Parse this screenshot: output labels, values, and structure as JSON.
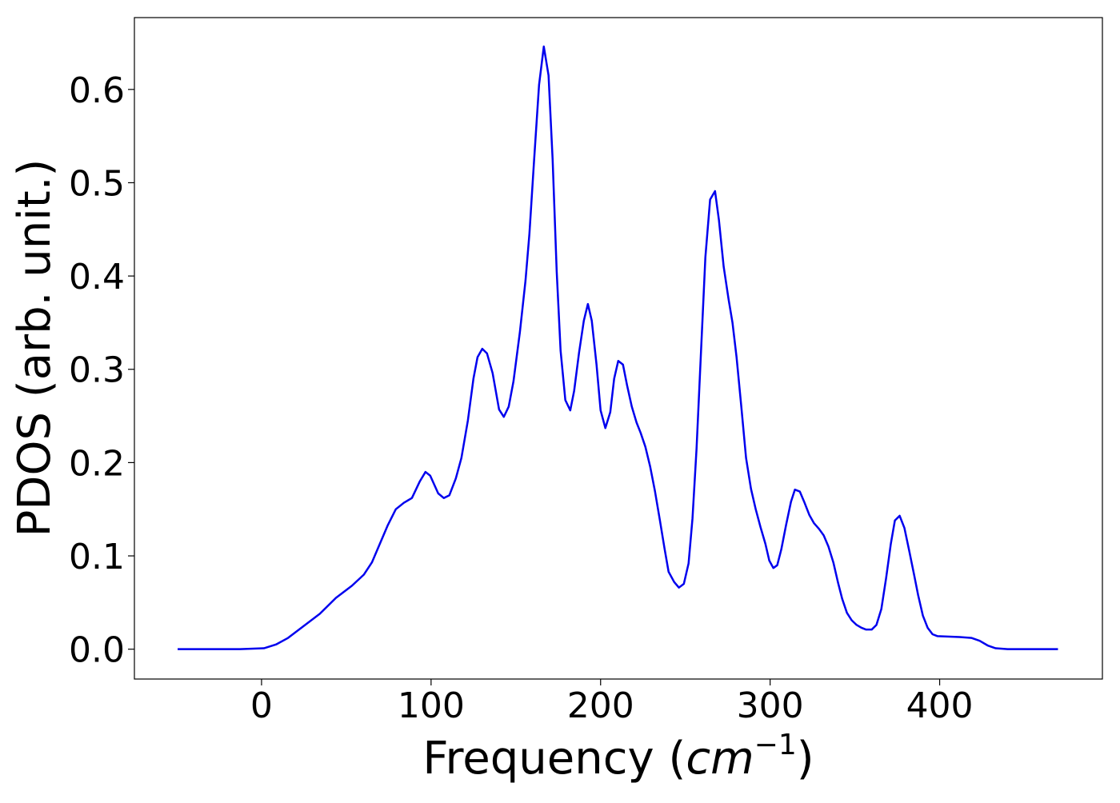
{
  "chart_data": {
    "type": "line",
    "xlabel": [
      "Frequency (",
      "cm",
      "−1",
      ")"
    ],
    "ylabel": "PDOS (arb. unit.)",
    "xlim": [
      -75,
      496
    ],
    "ylim": [
      -0.032,
      0.677
    ],
    "xticks": [
      0,
      100,
      200,
      300,
      400
    ],
    "yticks": [
      {
        "value": 0,
        "label": "0.0"
      },
      0.1,
      0.2,
      0.3,
      0.4,
      0.5,
      0.6
    ],
    "series": [
      {
        "color": "#0000ee",
        "x": [
          -49.5,
          -12.7,
          1.4,
          8.5,
          15.6,
          25,
          34.4,
          43.9,
          53.3,
          60.4,
          65.1,
          69.8,
          74.5,
          79.2,
          84,
          88.7,
          93.4,
          96.7,
          99.5,
          104.2,
          107.5,
          110.8,
          114.6,
          117.9,
          121.7,
          125,
          127.4,
          130.2,
          133,
          136.3,
          140.1,
          142.9,
          145.8,
          148.6,
          152.4,
          155.7,
          158,
          160.8,
          163.7,
          166.5,
          169.3,
          171.7,
          174.1,
          176.4,
          179.2,
          182.1,
          184.4,
          187.3,
          190.1,
          192.5,
          194.8,
          197.6,
          200,
          202.8,
          205.7,
          208,
          210.4,
          213.2,
          215.6,
          218.4,
          221.2,
          223.6,
          226.4,
          229.2,
          232.1,
          234.9,
          237.7,
          240.1,
          243.4,
          246.2,
          249.1,
          251.9,
          254.2,
          256.6,
          259,
          261.8,
          264.6,
          267.5,
          269.8,
          272.6,
          275.5,
          277.8,
          280.2,
          283,
          285.8,
          288.7,
          291.5,
          294.3,
          297.2,
          299.5,
          301.9,
          304.2,
          306.6,
          309.4,
          312.3,
          314.6,
          317.5,
          320.3,
          323.1,
          325.9,
          328.8,
          331.6,
          334.4,
          337.3,
          340.1,
          342.5,
          345.3,
          348.1,
          351,
          353.8,
          356.6,
          359.9,
          362.7,
          365.6,
          368.4,
          371.2,
          373.6,
          376.4,
          379.2,
          382.1,
          384.9,
          387.3,
          390.1,
          392.9,
          395.8,
          398.6,
          411.8,
          418.9,
          423.6,
          428.3,
          433,
          440.1,
          469.8
        ],
        "values": [
          0,
          0,
          0.001,
          0.005,
          0.012,
          0.025,
          0.038,
          0.055,
          0.068,
          0.08,
          0.093,
          0.113,
          0.133,
          0.15,
          0.157,
          0.162,
          0.18,
          0.19,
          0.186,
          0.167,
          0.162,
          0.165,
          0.183,
          0.205,
          0.245,
          0.29,
          0.313,
          0.322,
          0.317,
          0.296,
          0.257,
          0.249,
          0.26,
          0.287,
          0.34,
          0.395,
          0.445,
          0.525,
          0.605,
          0.646,
          0.615,
          0.525,
          0.405,
          0.32,
          0.267,
          0.256,
          0.277,
          0.318,
          0.352,
          0.37,
          0.352,
          0.305,
          0.256,
          0.237,
          0.254,
          0.29,
          0.309,
          0.305,
          0.283,
          0.26,
          0.243,
          0.232,
          0.217,
          0.196,
          0.169,
          0.139,
          0.108,
          0.083,
          0.072,
          0.066,
          0.07,
          0.092,
          0.14,
          0.215,
          0.31,
          0.42,
          0.482,
          0.491,
          0.46,
          0.41,
          0.375,
          0.35,
          0.313,
          0.26,
          0.205,
          0.172,
          0.15,
          0.131,
          0.113,
          0.095,
          0.087,
          0.09,
          0.107,
          0.133,
          0.158,
          0.171,
          0.169,
          0.157,
          0.144,
          0.135,
          0.129,
          0.122,
          0.11,
          0.093,
          0.071,
          0.054,
          0.039,
          0.031,
          0.026,
          0.023,
          0.021,
          0.021,
          0.026,
          0.043,
          0.076,
          0.113,
          0.138,
          0.143,
          0.13,
          0.105,
          0.08,
          0.058,
          0.036,
          0.023,
          0.016,
          0.014,
          0.013,
          0.012,
          0.009,
          0.004,
          0.001,
          0,
          0
        ]
      }
    ]
  }
}
